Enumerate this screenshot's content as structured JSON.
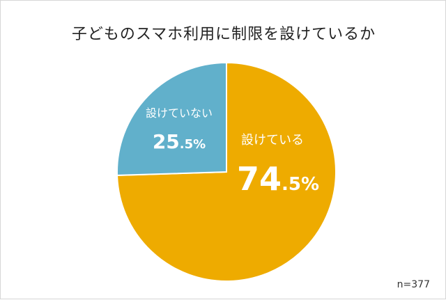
{
  "chart_data": {
    "type": "pie",
    "title": "子どものスマホ利用に制限を設けているか",
    "slices": [
      {
        "label": "設けている",
        "value": 74.5,
        "pct_main": "74",
        "pct_suffix": ".5%",
        "color": "#EEAB00"
      },
      {
        "label": "設けていない",
        "value": 25.5,
        "pct_main": "25",
        "pct_suffix": ".5%",
        "color": "#61B0CB"
      }
    ],
    "note": "n=377"
  }
}
